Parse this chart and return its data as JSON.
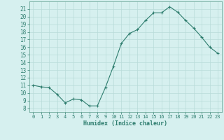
{
  "x": [
    0,
    1,
    2,
    3,
    4,
    5,
    6,
    7,
    8,
    9,
    10,
    11,
    12,
    13,
    14,
    15,
    16,
    17,
    18,
    19,
    20,
    21,
    22,
    23
  ],
  "y": [
    11.0,
    10.8,
    10.7,
    9.8,
    8.7,
    9.2,
    9.1,
    8.3,
    8.3,
    10.7,
    13.5,
    16.5,
    17.8,
    18.3,
    19.5,
    20.5,
    20.5,
    21.3,
    20.6,
    19.5,
    18.5,
    17.3,
    16.0,
    15.2
  ],
  "xlabel": "Humidex (Indice chaleur)",
  "ylim": [
    7.5,
    22
  ],
  "xlim": [
    -0.5,
    23.5
  ],
  "yticks": [
    8,
    9,
    10,
    11,
    12,
    13,
    14,
    15,
    16,
    17,
    18,
    19,
    20,
    21
  ],
  "xticks": [
    0,
    1,
    2,
    3,
    4,
    5,
    6,
    7,
    8,
    9,
    10,
    11,
    12,
    13,
    14,
    15,
    16,
    17,
    18,
    19,
    20,
    21,
    22,
    23
  ],
  "line_color": "#2e7d6e",
  "marker": "+",
  "bg_color": "#d6f0ef",
  "grid_color": "#b8dbd9",
  "spine_color": "#5a9a8a"
}
